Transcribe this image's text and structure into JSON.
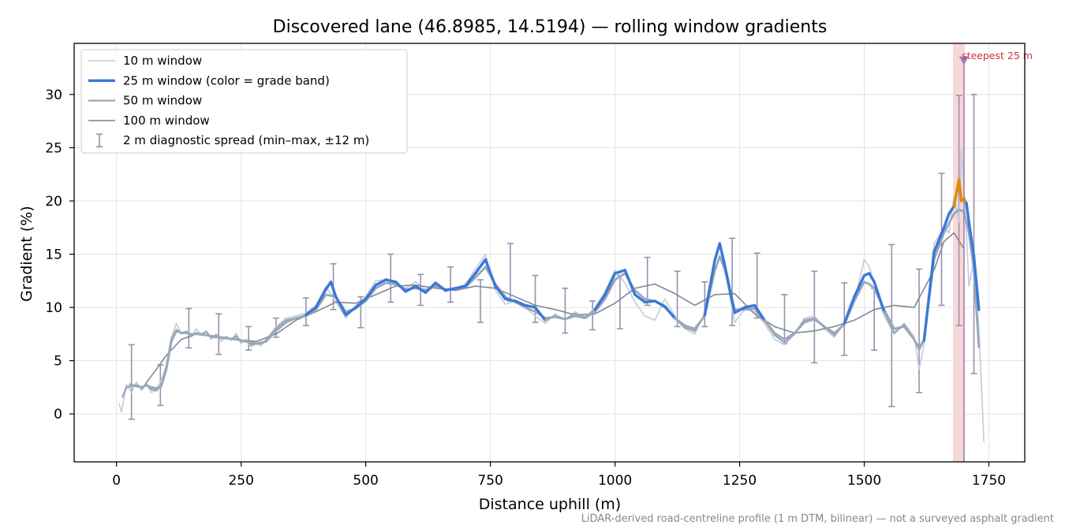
{
  "chart_data": {
    "type": "line",
    "title": "Discovered lane (46.8985, 14.5194) — rolling window gradients",
    "xlabel": "Distance uphill (m)",
    "ylabel": "Gradient (%)",
    "xlim": [
      -85,
      1822
    ],
    "ylim": [
      -4.5,
      34.8
    ],
    "xticks": [
      0,
      250,
      500,
      750,
      1000,
      1250,
      1500,
      1750
    ],
    "yticks": [
      0,
      5,
      10,
      15,
      20,
      25,
      30
    ],
    "grid": true,
    "legend_position": "upper-left",
    "legend": [
      "10 m window",
      "25 m window (color = grade band)",
      "50 m window",
      "100 m window",
      "2 m diagnostic spread (min–max, ±12 m)"
    ],
    "colors": {
      "w10": "#c3cbd8",
      "w25": "#3a78d8",
      "w25_steep": "#e08a00",
      "w50": "#9aa8b8",
      "w100": "#808890",
      "errorbar": "#9a90b0",
      "highlight": "#f4c8c8",
      "marker": "#9a80b8",
      "annotation": "#d03040"
    },
    "series": [
      {
        "name": "10 m window",
        "x": [
          5,
          10,
          20,
          30,
          40,
          50,
          60,
          70,
          80,
          90,
          100,
          110,
          120,
          130,
          140,
          150,
          160,
          170,
          180,
          190,
          200,
          210,
          220,
          230,
          240,
          250,
          260,
          270,
          280,
          290,
          300,
          320,
          340,
          360,
          380,
          400,
          420,
          440,
          460,
          480,
          500,
          520,
          540,
          560,
          580,
          600,
          620,
          640,
          660,
          680,
          700,
          720,
          740,
          760,
          780,
          800,
          820,
          840,
          860,
          880,
          900,
          920,
          940,
          960,
          980,
          1000,
          1020,
          1040,
          1060,
          1080,
          1100,
          1120,
          1140,
          1160,
          1180,
          1200,
          1210,
          1220,
          1240,
          1260,
          1280,
          1300,
          1320,
          1340,
          1360,
          1380,
          1400,
          1420,
          1440,
          1460,
          1480,
          1500,
          1510,
          1520,
          1540,
          1560,
          1580,
          1600,
          1610,
          1620,
          1640,
          1660,
          1670,
          1680,
          1690,
          1695,
          1700,
          1705,
          1710,
          1720,
          1730,
          1740
        ],
        "values": [
          1.0,
          0.2,
          2.8,
          2.0,
          3.0,
          2.2,
          2.8,
          2.0,
          2.3,
          3.2,
          4.6,
          7.2,
          8.5,
          7.5,
          7.8,
          7.2,
          8.0,
          7.4,
          7.8,
          7.0,
          7.5,
          6.8,
          7.3,
          6.9,
          7.6,
          6.6,
          7.0,
          6.3,
          6.6,
          6.4,
          7.0,
          8.2,
          9.0,
          9.2,
          9.5,
          10.2,
          12.0,
          10.5,
          9.0,
          10.2,
          11.0,
          12.5,
          12.6,
          12.0,
          11.8,
          12.4,
          11.7,
          12.2,
          11.5,
          11.8,
          12.2,
          13.6,
          15.0,
          11.6,
          10.3,
          10.6,
          10.0,
          9.2,
          8.5,
          9.4,
          8.8,
          9.6,
          9.0,
          10.0,
          11.5,
          13.5,
          12.3,
          10.5,
          9.2,
          8.8,
          10.8,
          9.2,
          8.0,
          7.5,
          9.5,
          14.5,
          16.0,
          13.6,
          8.6,
          9.8,
          9.6,
          8.5,
          7.0,
          6.5,
          7.5,
          9.0,
          9.2,
          8.0,
          7.2,
          8.5,
          10.5,
          14.5,
          13.8,
          12.3,
          9.2,
          7.5,
          8.5,
          7.3,
          4.2,
          6.5,
          16.0,
          17.5,
          17.0,
          20.5,
          18.0,
          25.0,
          21.0,
          17.0,
          12.0,
          14.5,
          8.0,
          -2.6
        ]
      },
      {
        "name": "25 m window (color = grade band)",
        "x": [
          12,
          20,
          30,
          40,
          50,
          60,
          70,
          80,
          90,
          100,
          110,
          120,
          130,
          140,
          150,
          160,
          170,
          180,
          190,
          200,
          210,
          220,
          230,
          240,
          250,
          260,
          270,
          280,
          290,
          300,
          320,
          340,
          360,
          380,
          400,
          420,
          430,
          440,
          460,
          480,
          500,
          520,
          540,
          560,
          580,
          600,
          620,
          640,
          660,
          680,
          700,
          720,
          740,
          760,
          780,
          800,
          820,
          840,
          860,
          880,
          900,
          920,
          940,
          960,
          980,
          1000,
          1020,
          1040,
          1060,
          1080,
          1100,
          1120,
          1140,
          1160,
          1180,
          1200,
          1210,
          1220,
          1240,
          1260,
          1280,
          1300,
          1320,
          1340,
          1360,
          1380,
          1400,
          1420,
          1440,
          1460,
          1480,
          1500,
          1510,
          1520,
          1540,
          1560,
          1580,
          1600,
          1610,
          1620,
          1640,
          1660,
          1670,
          1680,
          1690,
          1695,
          1700,
          1705,
          1710,
          1720,
          1730
        ],
        "values": [
          1.6,
          2.5,
          2.6,
          2.7,
          2.5,
          2.7,
          2.3,
          2.2,
          2.7,
          4.4,
          7.0,
          7.9,
          7.6,
          7.7,
          7.4,
          7.6,
          7.5,
          7.7,
          7.2,
          7.4,
          7.1,
          7.2,
          7.0,
          7.3,
          6.8,
          6.9,
          6.5,
          6.6,
          6.6,
          6.9,
          8.0,
          8.8,
          9.0,
          9.3,
          10.0,
          11.7,
          12.4,
          11.0,
          9.3,
          10.0,
          10.8,
          12.1,
          12.6,
          12.4,
          11.5,
          12.0,
          11.4,
          12.3,
          11.6,
          11.8,
          12.0,
          13.2,
          14.5,
          12.0,
          10.8,
          10.6,
          10.2,
          10.0,
          8.8,
          9.2,
          8.9,
          9.4,
          9.1,
          9.8,
          11.2,
          13.2,
          13.5,
          11.2,
          10.5,
          10.6,
          10.1,
          9.0,
          8.1,
          7.8,
          9.3,
          14.4,
          16.0,
          14.0,
          9.5,
          10.0,
          10.2,
          8.8,
          7.4,
          6.7,
          7.5,
          8.8,
          9.0,
          8.2,
          7.4,
          8.5,
          11.0,
          13.0,
          13.2,
          12.4,
          9.6,
          7.6,
          8.4,
          7.0,
          6.0,
          6.9,
          15.2,
          17.5,
          18.8,
          19.5,
          22.0,
          20.0,
          20.2,
          19.8,
          18.0,
          14.8,
          9.8
        ]
      },
      {
        "name": "50 m window",
        "x": [
          25,
          40,
          50,
          60,
          70,
          80,
          90,
          100,
          110,
          120,
          130,
          140,
          150,
          160,
          180,
          200,
          220,
          240,
          260,
          280,
          300,
          320,
          340,
          360,
          380,
          400,
          420,
          440,
          460,
          480,
          500,
          520,
          540,
          560,
          580,
          600,
          620,
          640,
          660,
          680,
          700,
          720,
          740,
          760,
          780,
          800,
          820,
          840,
          860,
          880,
          900,
          920,
          940,
          960,
          980,
          1000,
          1020,
          1040,
          1060,
          1080,
          1100,
          1120,
          1140,
          1160,
          1180,
          1200,
          1210,
          1220,
          1240,
          1260,
          1280,
          1300,
          1320,
          1340,
          1360,
          1380,
          1400,
          1420,
          1440,
          1460,
          1480,
          1500,
          1510,
          1520,
          1540,
          1560,
          1580,
          1600,
          1610,
          1620,
          1640,
          1660,
          1680,
          1690,
          1700,
          1710,
          1720,
          1730
        ],
        "values": [
          2.8,
          2.6,
          2.5,
          2.7,
          2.5,
          2.4,
          2.6,
          4.2,
          6.8,
          7.8,
          7.6,
          7.6,
          7.5,
          7.5,
          7.4,
          7.2,
          7.1,
          7.0,
          6.8,
          6.6,
          6.8,
          7.8,
          8.6,
          9.0,
          9.2,
          9.8,
          11.2,
          11.0,
          9.6,
          9.9,
          10.6,
          11.8,
          12.3,
          12.2,
          11.7,
          11.8,
          11.6,
          12.0,
          11.7,
          11.8,
          11.9,
          12.8,
          13.8,
          12.2,
          11.0,
          10.5,
          10.0,
          9.6,
          9.0,
          9.1,
          8.9,
          9.2,
          9.0,
          9.6,
          10.8,
          12.6,
          13.2,
          11.6,
          10.8,
          10.6,
          10.0,
          9.0,
          8.3,
          8.0,
          9.2,
          13.4,
          14.8,
          13.6,
          9.8,
          9.8,
          9.9,
          8.8,
          7.6,
          7.0,
          7.6,
          8.6,
          8.9,
          8.2,
          7.6,
          8.4,
          10.6,
          12.4,
          12.2,
          11.8,
          9.8,
          8.0,
          8.2,
          7.0,
          6.2,
          7.0,
          14.5,
          17.0,
          18.8,
          19.2,
          19.0,
          17.0,
          13.5,
          6.2
        ]
      },
      {
        "name": "100 m window",
        "x": [
          50,
          80,
          100,
          130,
          160,
          200,
          240,
          280,
          320,
          360,
          400,
          440,
          480,
          520,
          560,
          600,
          640,
          680,
          720,
          760,
          800,
          840,
          880,
          920,
          960,
          1000,
          1040,
          1080,
          1120,
          1160,
          1200,
          1240,
          1280,
          1320,
          1360,
          1400,
          1440,
          1480,
          1520,
          1560,
          1600,
          1640,
          1660,
          1680,
          1700
        ],
        "values": [
          2.3,
          4.2,
          5.5,
          7.0,
          7.5,
          7.3,
          7.0,
          6.8,
          7.5,
          8.8,
          9.6,
          10.5,
          10.4,
          11.2,
          12.0,
          12.1,
          11.8,
          11.6,
          12.0,
          11.8,
          11.0,
          10.2,
          9.8,
          9.3,
          9.4,
          10.4,
          11.8,
          12.2,
          11.3,
          10.2,
          11.2,
          11.3,
          9.4,
          8.2,
          7.6,
          7.8,
          8.2,
          8.8,
          9.8,
          10.2,
          10.0,
          13.5,
          16.2,
          17.0,
          15.5
        ]
      }
    ],
    "errorbars": {
      "name": "2 m diagnostic spread (min–max, ±12 m)",
      "x": [
        30,
        88,
        145,
        205,
        265,
        320,
        380,
        435,
        490,
        550,
        610,
        670,
        730,
        790,
        840,
        900,
        955,
        1010,
        1065,
        1125,
        1180,
        1235,
        1285,
        1340,
        1400,
        1460,
        1520,
        1555,
        1610,
        1655,
        1690,
        1720
      ],
      "min": [
        -0.5,
        0.8,
        6.2,
        5.6,
        6.0,
        7.2,
        8.3,
        9.8,
        8.1,
        10.5,
        10.2,
        10.5,
        8.6,
        10.6,
        8.6,
        7.6,
        7.9,
        8.0,
        10.2,
        8.2,
        8.2,
        8.3,
        9.0,
        6.6,
        4.8,
        5.5,
        6.0,
        0.7,
        2.0,
        10.2,
        8.3,
        3.8
      ],
      "max": [
        6.5,
        4.6,
        9.9,
        9.4,
        8.2,
        9.0,
        10.9,
        14.1,
        11.0,
        15.0,
        13.1,
        13.8,
        12.6,
        16.0,
        13.0,
        11.8,
        10.6,
        13.0,
        14.7,
        13.4,
        12.4,
        16.5,
        15.1,
        11.2,
        13.4,
        12.3,
        11.8,
        15.9,
        13.6,
        22.6,
        29.9,
        30.0
      ]
    },
    "highlight_band": [
      1678,
      1702
    ],
    "marker": {
      "x": 1700,
      "y": 33.2,
      "label": "steepest 25 m"
    }
  },
  "footnote": "LiDAR-derived road-centreline profile (1 m DTM, bilinear) — not a surveyed asphalt gradient"
}
